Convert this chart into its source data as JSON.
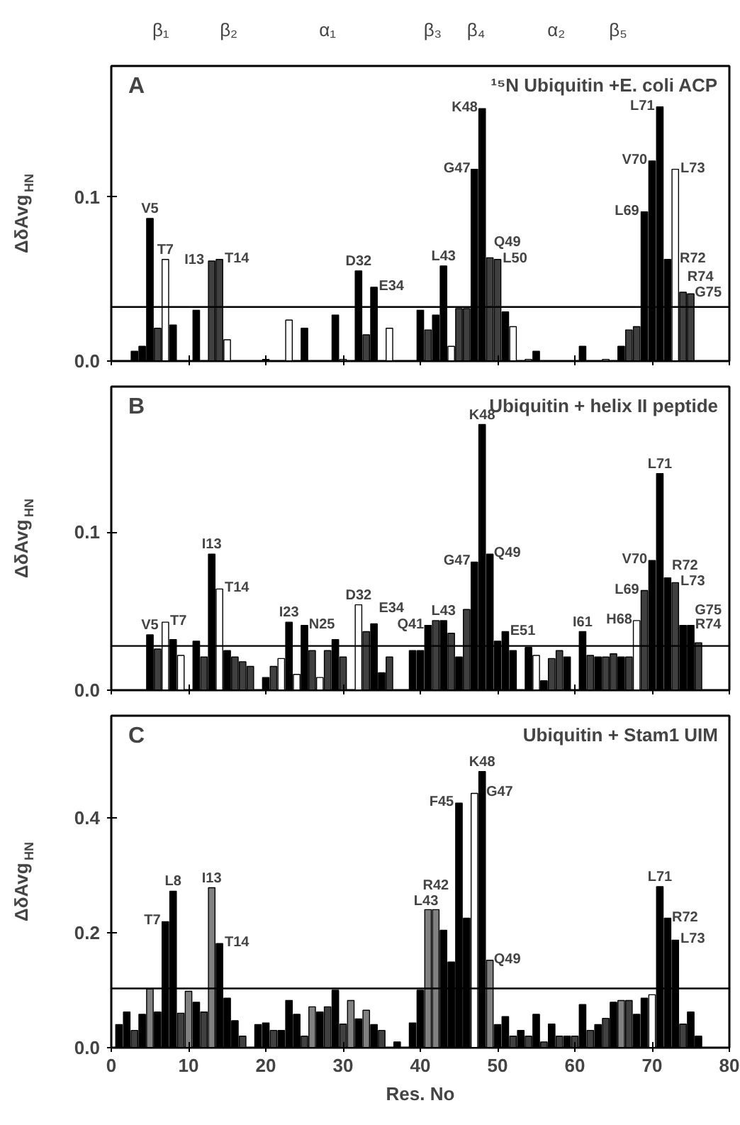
{
  "chart_data": [
    {
      "type": "other",
      "annotations": [
        "β₁",
        "β₂",
        "α₁",
        "β₃",
        "β₄",
        "α₂",
        "β₅"
      ]
    },
    {
      "type": "bar",
      "title": "¹⁵N Ubiquitin +E. coli ACP",
      "ylabel": "ΔδAvg$_{HN}$",
      "xlim": [
        0,
        80
      ],
      "ylim": [
        0,
        0.18
      ],
      "xticks": [
        0,
        10,
        20,
        30,
        40,
        50,
        60,
        70,
        80
      ],
      "yticks": [
        {
          "value": 0,
          "label": "0.0"
        },
        {
          "value": 0.1,
          "label": "0.1"
        }
      ],
      "tick_labels": "y",
      "grid": false,
      "x": [
        3,
        4,
        5,
        6,
        7,
        8,
        11,
        13,
        14,
        15,
        20,
        23,
        25,
        29,
        30,
        32,
        33,
        34,
        36,
        40,
        41,
        42,
        43,
        44,
        45,
        46,
        47,
        48,
        49,
        50,
        51,
        52,
        54,
        55,
        61,
        64,
        66,
        67,
        68,
        69,
        70,
        71,
        72,
        73,
        74,
        75
      ],
      "values": [
        0.006,
        0.009,
        0.087,
        0.02,
        0.062,
        0.022,
        0.031,
        0.061,
        0.062,
        0.013,
        0.001,
        0.025,
        0.02,
        0.028,
        0.001,
        0.055,
        0.016,
        0.045,
        0.02,
        0.031,
        0.019,
        0.028,
        0.058,
        0.009,
        0.032,
        0.032,
        0.117,
        0.154,
        0.063,
        0.062,
        0.03,
        0.021,
        0.001,
        0.006,
        0.009,
        0.001,
        0.009,
        0.019,
        0.021,
        0.091,
        0.122,
        0.155,
        0.062,
        0.117,
        0.042,
        0.041
      ],
      "colors": [
        "#000000",
        "#000000",
        "#000000",
        "#404040",
        "#ffffff",
        "#000000",
        "#000000",
        "#404040",
        "#404040",
        "#ffffff",
        "#000000",
        "#ffffff",
        "#000000",
        "#000000",
        "#ffffff",
        "#000000",
        "#404040",
        "#000000",
        "#ffffff",
        "#000000",
        "#404040",
        "#000000",
        "#000000",
        "#ffffff",
        "#404040",
        "#404040",
        "#000000",
        "#000000",
        "#404040",
        "#404040",
        "#000000",
        "#ffffff",
        "#ffffff",
        "#000000",
        "#000000",
        "#ffffff",
        "#000000",
        "#404040",
        "#404040",
        "#000000",
        "#000000",
        "#000000",
        "#000000",
        "#ffffff",
        "#404040",
        "#404040"
      ],
      "ref_lines": [
        {
          "axis": "y",
          "value": 0.033
        }
      ],
      "annotations": [
        "A",
        {
          "text": "V5",
          "x": 5,
          "y": 0.087
        },
        {
          "text": "T7",
          "x": 7,
          "y": 0.062
        },
        {
          "text": "I13",
          "x": 13,
          "y": 0.061
        },
        {
          "text": "T14",
          "x": 14,
          "y": 0.062
        },
        {
          "text": "D32",
          "x": 32,
          "y": 0.055
        },
        {
          "text": "E34",
          "x": 34,
          "y": 0.045
        },
        {
          "text": "L43",
          "x": 43,
          "y": 0.058
        },
        {
          "text": "G47",
          "x": 47,
          "y": 0.117
        },
        {
          "text": "K48",
          "x": 48,
          "y": 0.154
        },
        {
          "text": "Q49",
          "x": 49,
          "y": 0.063
        },
        {
          "text": "L50",
          "x": 50,
          "y": 0.062
        },
        {
          "text": "L69",
          "x": 69,
          "y": 0.091
        },
        {
          "text": "V70",
          "x": 70,
          "y": 0.122
        },
        {
          "text": "L71",
          "x": 71,
          "y": 0.155
        },
        {
          "text": "R72",
          "x": 72,
          "y": 0.062
        },
        {
          "text": "L73",
          "x": 73,
          "y": 0.117
        },
        {
          "text": "R74",
          "x": 74,
          "y": 0.042
        },
        {
          "text": "G75",
          "x": 75,
          "y": 0.041
        }
      ]
    },
    {
      "type": "bar",
      "title": "Ubiquitin + helix II peptide",
      "ylabel": "ΔδAvg$_{HN}$",
      "xlim": [
        0,
        80
      ],
      "ylim": [
        0,
        0.192
      ],
      "xticks": [
        0,
        10,
        20,
        30,
        40,
        50,
        60,
        70,
        80
      ],
      "yticks": [
        {
          "value": 0,
          "label": "0.0"
        },
        {
          "value": 0.1,
          "label": "0.1"
        }
      ],
      "tick_labels": "y",
      "grid": false,
      "x": [
        5,
        6,
        7,
        8,
        9,
        11,
        12,
        13,
        14,
        15,
        16,
        17,
        18,
        20,
        21,
        22,
        23,
        24,
        25,
        26,
        27,
        28,
        29,
        30,
        32,
        33,
        34,
        35,
        36,
        39,
        40,
        41,
        42,
        43,
        44,
        45,
        46,
        47,
        48,
        49,
        50,
        51,
        52,
        54,
        55,
        56,
        57,
        58,
        59,
        61,
        62,
        63,
        64,
        65,
        66,
        67,
        68,
        69,
        70,
        71,
        72,
        73,
        74,
        75,
        76
      ],
      "values": [
        0.035,
        0.026,
        0.043,
        0.032,
        0.022,
        0.031,
        0.021,
        0.086,
        0.064,
        0.025,
        0.021,
        0.018,
        0.015,
        0.008,
        0.015,
        0.02,
        0.043,
        0.01,
        0.041,
        0.025,
        0.008,
        0.025,
        0.032,
        0.021,
        0.054,
        0.037,
        0.042,
        0.011,
        0.021,
        0.025,
        0.025,
        0.041,
        0.044,
        0.044,
        0.036,
        0.021,
        0.051,
        0.081,
        0.168,
        0.086,
        0.031,
        0.037,
        0.025,
        0.027,
        0.022,
        0.006,
        0.02,
        0.025,
        0.021,
        0.037,
        0.022,
        0.021,
        0.021,
        0.023,
        0.021,
        0.021,
        0.044,
        0.063,
        0.082,
        0.137,
        0.071,
        0.068,
        0.041,
        0.041,
        0.03
      ],
      "colors": [
        "#000000",
        "#404040",
        "#ffffff",
        "#000000",
        "#ffffff",
        "#000000",
        "#404040",
        "#000000",
        "#ffffff",
        "#000000",
        "#404040",
        "#404040",
        "#404040",
        "#000000",
        "#404040",
        "#ffffff",
        "#000000",
        "#ffffff",
        "#000000",
        "#404040",
        "#ffffff",
        "#404040",
        "#000000",
        "#404040",
        "#ffffff",
        "#404040",
        "#000000",
        "#000000",
        "#404040",
        "#000000",
        "#000000",
        "#000000",
        "#404040",
        "#000000",
        "#404040",
        "#000000",
        "#404040",
        "#000000",
        "#000000",
        "#000000",
        "#000000",
        "#000000",
        "#000000",
        "#000000",
        "#ffffff",
        "#000000",
        "#404040",
        "#404040",
        "#000000",
        "#000000",
        "#404040",
        "#000000",
        "#404040",
        "#404040",
        "#000000",
        "#404040",
        "#ffffff",
        "#404040",
        "#000000",
        "#000000",
        "#000000",
        "#404040",
        "#000000",
        "#000000",
        "#404040"
      ],
      "ref_lines": [
        {
          "axis": "y",
          "value": 0.028
        }
      ],
      "annotations": [
        "B",
        {
          "text": "V5",
          "x": 5,
          "y": 0.035
        },
        {
          "text": "T7",
          "x": 7,
          "y": 0.043
        },
        {
          "text": "I13",
          "x": 13,
          "y": 0.086
        },
        {
          "text": "T14",
          "x": 14,
          "y": 0.064
        },
        {
          "text": "I23",
          "x": 23,
          "y": 0.043
        },
        {
          "text": "N25",
          "x": 25,
          "y": 0.041
        },
        {
          "text": "D32",
          "x": 32,
          "y": 0.054
        },
        {
          "text": "E34",
          "x": 34,
          "y": 0.042
        },
        {
          "text": "Q41",
          "x": 41,
          "y": 0.041
        },
        {
          "text": "L43",
          "x": 43,
          "y": 0.044
        },
        {
          "text": "G47",
          "x": 47,
          "y": 0.081
        },
        {
          "text": "K48",
          "x": 48,
          "y": 0.168
        },
        {
          "text": "Q49",
          "x": 49,
          "y": 0.086
        },
        {
          "text": "E51",
          "x": 51,
          "y": 0.037
        },
        {
          "text": "I61",
          "x": 61,
          "y": 0.037
        },
        {
          "text": "H68",
          "x": 68,
          "y": 0.044
        },
        {
          "text": "L69",
          "x": 69,
          "y": 0.063
        },
        {
          "text": "V70",
          "x": 70,
          "y": 0.082
        },
        {
          "text": "L71",
          "x": 71,
          "y": 0.137
        },
        {
          "text": "R72",
          "x": 72,
          "y": 0.071
        },
        {
          "text": "L73",
          "x": 73,
          "y": 0.068
        },
        {
          "text": "R74",
          "x": 74,
          "y": 0.041
        },
        {
          "text": "G75",
          "x": 75,
          "y": 0.041
        }
      ]
    },
    {
      "type": "bar",
      "title": "Ubiquitin + Stam1 UIM",
      "ylabel": "ΔδAvg$_{HN}$",
      "xlabel": "Res. No",
      "xlim": [
        0,
        80
      ],
      "ylim": [
        0,
        0.577
      ],
      "xticks": [
        0,
        10,
        20,
        30,
        40,
        50,
        60,
        70,
        80
      ],
      "yticks": [
        {
          "value": 0,
          "label": "0.0"
        },
        {
          "value": 0.2,
          "label": "0.2"
        },
        {
          "value": 0.4,
          "label": "0.4"
        }
      ],
      "grid": false,
      "x": [
        1,
        2,
        3,
        4,
        5,
        6,
        7,
        8,
        9,
        10,
        11,
        12,
        13,
        14,
        15,
        16,
        17,
        19,
        20,
        21,
        22,
        23,
        24,
        25,
        26,
        27,
        28,
        29,
        30,
        31,
        32,
        33,
        34,
        35,
        37,
        39,
        40,
        41,
        42,
        43,
        44,
        45,
        46,
        47,
        48,
        49,
        50,
        51,
        52,
        53,
        54,
        55,
        56,
        57,
        58,
        59,
        60,
        61,
        62,
        63,
        64,
        65,
        66,
        67,
        68,
        69,
        70,
        71,
        72,
        73,
        74,
        75,
        76
      ],
      "values": [
        0.04,
        0.062,
        0.03,
        0.058,
        0.102,
        0.062,
        0.219,
        0.272,
        0.06,
        0.098,
        0.079,
        0.062,
        0.278,
        0.181,
        0.086,
        0.047,
        0.02,
        0.04,
        0.043,
        0.03,
        0.03,
        0.082,
        0.058,
        0.02,
        0.071,
        0.062,
        0.071,
        0.1,
        0.041,
        0.082,
        0.05,
        0.065,
        0.04,
        0.03,
        0.01,
        0.043,
        0.1,
        0.24,
        0.24,
        0.204,
        0.149,
        0.425,
        0.225,
        0.442,
        0.48,
        0.152,
        0.04,
        0.054,
        0.02,
        0.03,
        0.02,
        0.058,
        0.01,
        0.041,
        0.02,
        0.02,
        0.02,
        0.075,
        0.03,
        0.04,
        0.051,
        0.079,
        0.082,
        0.082,
        0.058,
        0.086,
        0.092,
        0.28,
        0.225,
        0.187,
        0.041,
        0.062,
        0.02
      ],
      "colors": [
        "#000000",
        "#000000",
        "#404040",
        "#000000",
        "#808080",
        "#000000",
        "#000000",
        "#000000",
        "#404040",
        "#808080",
        "#000000",
        "#404040",
        "#808080",
        "#000000",
        "#000000",
        "#000000",
        "#404040",
        "#000000",
        "#000000",
        "#404040",
        "#000000",
        "#000000",
        "#000000",
        "#404040",
        "#808080",
        "#000000",
        "#404040",
        "#000000",
        "#404040",
        "#808080",
        "#000000",
        "#808080",
        "#000000",
        "#404040",
        "#000000",
        "#000000",
        "#000000",
        "#808080",
        "#808080",
        "#000000",
        "#000000",
        "#000000",
        "#000000",
        "#ffffff",
        "#000000",
        "#808080",
        "#000000",
        "#000000",
        "#404040",
        "#000000",
        "#404040",
        "#000000",
        "#404040",
        "#000000",
        "#404040",
        "#000000",
        "#404040",
        "#000000",
        "#404040",
        "#000000",
        "#404040",
        "#000000",
        "#808080",
        "#404040",
        "#000000",
        "#000000",
        "#ffffff",
        "#000000",
        "#000000",
        "#000000",
        "#404040",
        "#000000",
        "#000000"
      ],
      "ref_lines": [
        {
          "axis": "y",
          "value": 0.103
        }
      ],
      "annotations": [
        "C",
        {
          "text": "T7",
          "x": 7,
          "y": 0.219
        },
        {
          "text": "L8",
          "x": 8,
          "y": 0.272
        },
        {
          "text": "I13",
          "x": 13,
          "y": 0.278
        },
        {
          "text": "T14",
          "x": 14,
          "y": 0.181
        },
        {
          "text": "R42",
          "x": 42,
          "y": 0.24
        },
        {
          "text": "L43",
          "x": 43,
          "y": 0.204
        },
        {
          "text": "F45",
          "x": 45,
          "y": 0.425
        },
        {
          "text": "G47",
          "x": 47,
          "y": 0.442
        },
        {
          "text": "K48",
          "x": 48,
          "y": 0.48
        },
        {
          "text": "Q49",
          "x": 49,
          "y": 0.152
        },
        {
          "text": "L71",
          "x": 71,
          "y": 0.28
        },
        {
          "text": "R72",
          "x": 72,
          "y": 0.225
        },
        {
          "text": "L73",
          "x": 73,
          "y": 0.187
        }
      ]
    }
  ]
}
